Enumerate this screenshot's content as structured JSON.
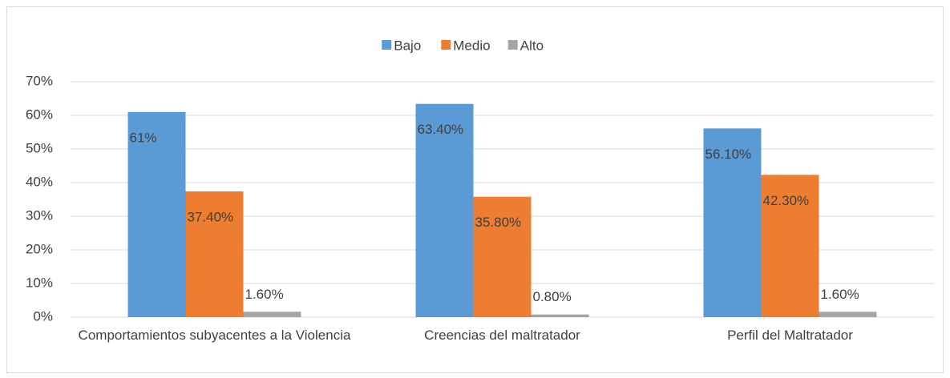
{
  "chart_data": {
    "type": "bar",
    "categories": [
      "Comportamientos subyacentes a la Violencia",
      "Creencias del maltratador",
      "Perfil del Maltratador"
    ],
    "series": [
      {
        "name": "Bajo",
        "color": "#5b9bd5",
        "values": [
          61,
          63.4,
          56.1
        ],
        "value_labels": [
          "61%",
          "63.40%",
          "56.10%"
        ]
      },
      {
        "name": "Medio",
        "color": "#ed7d31",
        "values": [
          37.4,
          35.8,
          42.3
        ],
        "value_labels": [
          "37.40%",
          "35.80%",
          "42.30%"
        ]
      },
      {
        "name": "Alto",
        "color": "#a5a5a5",
        "values": [
          1.6,
          0.8,
          1.6
        ],
        "value_labels": [
          "1.60%",
          "0.80%",
          "1.60%"
        ]
      }
    ],
    "ylim": [
      0,
      70
    ],
    "yticks": [
      {
        "value": 0,
        "label": "0%"
      },
      {
        "value": 10,
        "label": "10%"
      },
      {
        "value": 20,
        "label": "20%"
      },
      {
        "value": 30,
        "label": "30%"
      },
      {
        "value": 40,
        "label": "40%"
      },
      {
        "value": 50,
        "label": "50%"
      },
      {
        "value": 60,
        "label": "60%"
      },
      {
        "value": 70,
        "label": "70%"
      }
    ],
    "grid": true,
    "legend": "top"
  }
}
